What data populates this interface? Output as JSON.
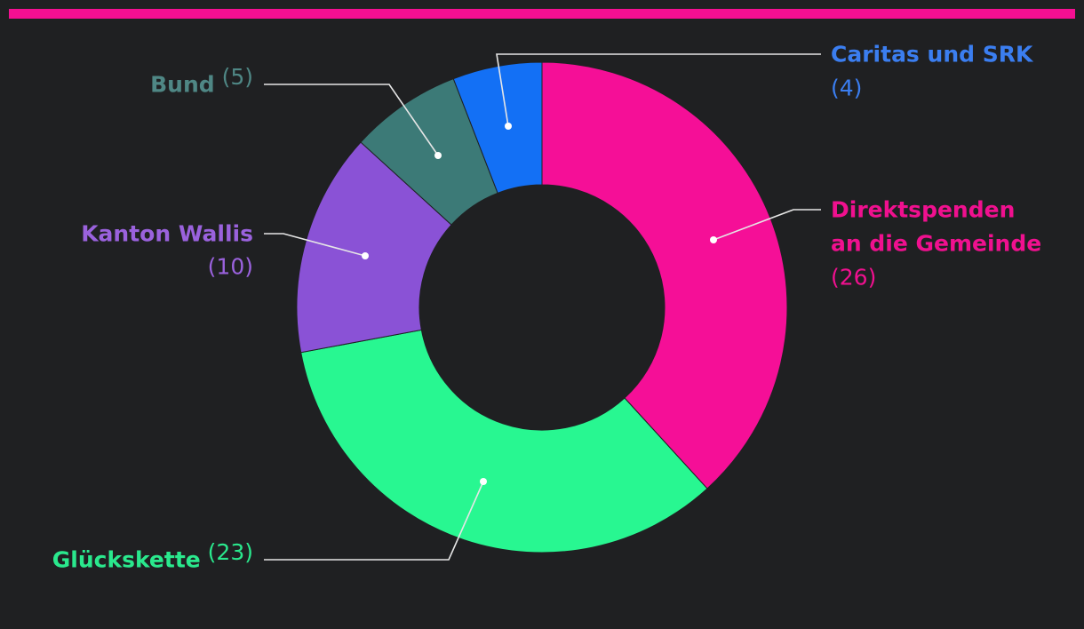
{
  "colors": {
    "background": "#1f2022",
    "accent_bar": "#f50f92",
    "leader_line": "#e6e6e6"
  },
  "chart_data": {
    "type": "pie",
    "subtype": "donut",
    "title": "",
    "slices": [
      {
        "label": "Direktspenden an die Gemeinde",
        "label_lines": [
          "Direktspenden",
          "an die Gemeinde"
        ],
        "value": 26,
        "value_text": "(26)",
        "color": "#f50f97"
      },
      {
        "label": "Glückskette",
        "label_lines": [
          "Glückskette"
        ],
        "value": 23,
        "value_text": "(23)",
        "color": "#28f791"
      },
      {
        "label": "Kanton Wallis",
        "label_lines": [
          "Kanton Wallis"
        ],
        "value": 10,
        "value_text": "(10)",
        "color": "#8a52d6"
      },
      {
        "label": "Bund",
        "label_lines": [
          "Bund"
        ],
        "value": 5,
        "value_text": "(5)",
        "color": "#3c7a77"
      },
      {
        "label": "Caritas und SRK",
        "label_lines": [
          "Caritas und SRK"
        ],
        "value": 4,
        "value_text": "(4)",
        "color": "#1370f5"
      }
    ],
    "label_colors": [
      "#f0108f",
      "#2ae88d",
      "#9a62dd",
      "#4f8785",
      "#3b7ef0"
    ],
    "legend": "none"
  }
}
